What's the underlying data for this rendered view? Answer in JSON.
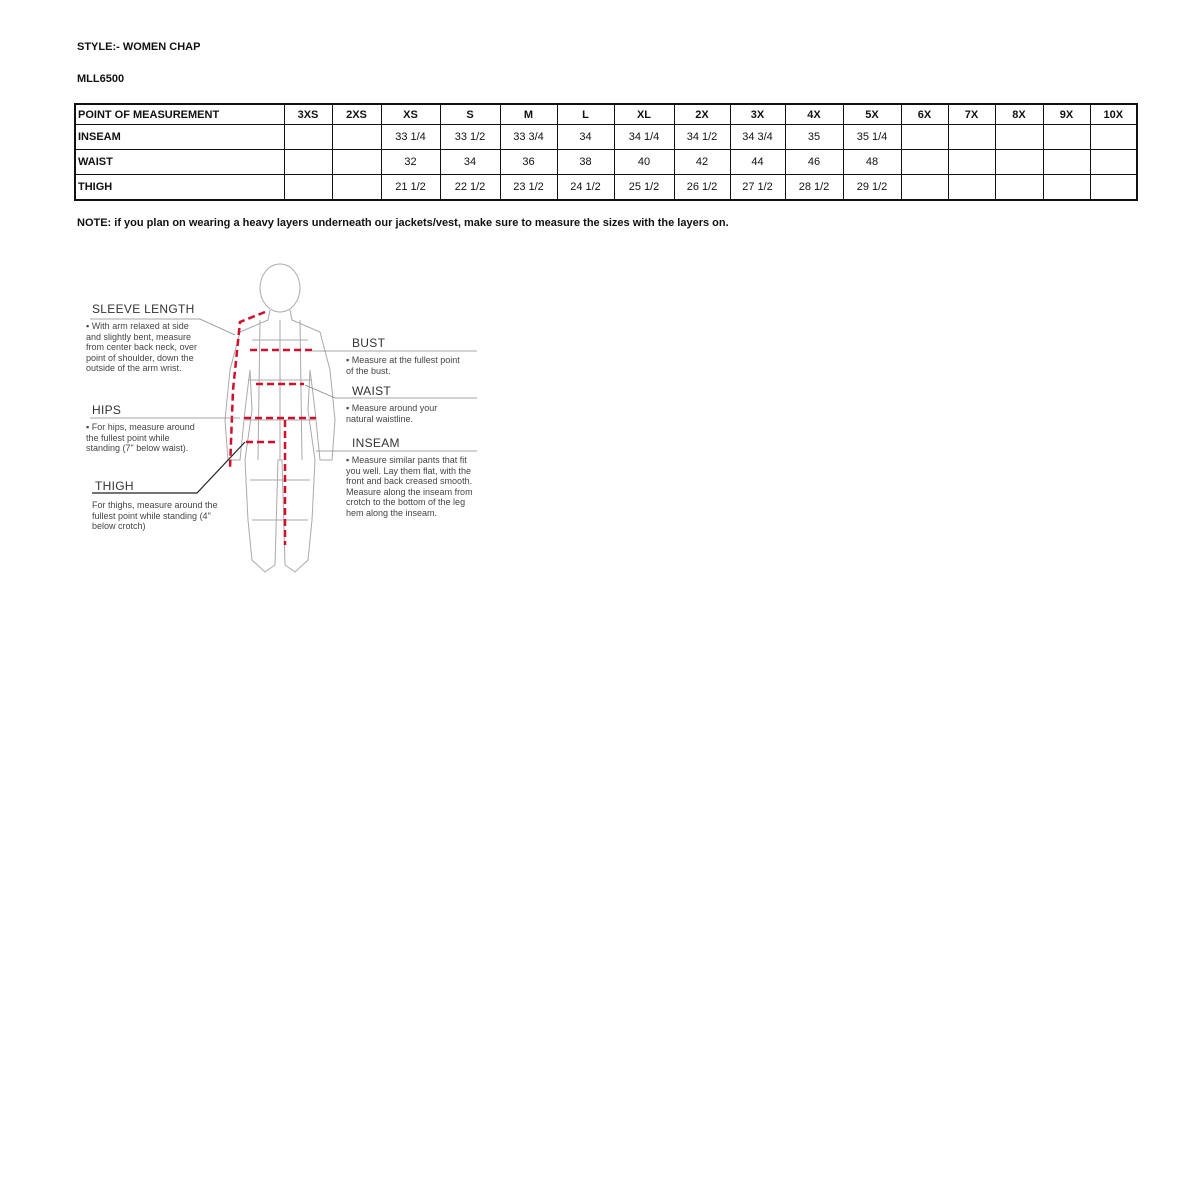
{
  "style_line": "STYLE:- WOMEN CHAP",
  "model": "MLL6500",
  "table": {
    "headers": [
      "POINT OF MEASUREMENT",
      "3XS",
      "2XS",
      "XS",
      "S",
      "M",
      "L",
      "XL",
      "2X",
      "3X",
      "4X",
      "5X",
      "6X",
      "7X",
      "8X",
      "9X",
      "10X"
    ],
    "rows": [
      {
        "label": "INSEAM",
        "values": [
          "",
          "",
          "33 1/4",
          "33 1/2",
          "33 3/4",
          "34",
          "34 1/4",
          "34 1/2",
          "34 3/4",
          "35",
          "35 1/4",
          "",
          "",
          "",
          "",
          ""
        ]
      },
      {
        "label": "WAIST",
        "values": [
          "",
          "",
          "32",
          "34",
          "36",
          "38",
          "40",
          "42",
          "44",
          "46",
          "48",
          "",
          "",
          "",
          "",
          ""
        ]
      },
      {
        "label": "THIGH",
        "values": [
          "",
          "",
          "21 1/2",
          "22 1/2",
          "23 1/2",
          "24 1/2",
          "25 1/2",
          "26 1/2",
          "27 1/2",
          "28 1/2",
          "29 1/2",
          "",
          "",
          "",
          "",
          ""
        ]
      }
    ]
  },
  "note": "NOTE: if you plan on wearing a heavy layers underneath our jackets/vest, make sure to measure the sizes with the layers on.",
  "figure": {
    "sleeve_title": "SLEEVE LENGTH",
    "sleeve_text": "▪ With arm relaxed at side and slightly bent, measure from center back neck, over point of shoulder, down the outside of the arm wrist.",
    "hips_title": "HIPS",
    "hips_text": "▪ For hips, measure around the fullest point while standing (7\" below waist).",
    "thigh_title": "THIGH",
    "thigh_text": "For thighs, measure around the fullest point while standing (4\" below crotch)",
    "bust_title": "BUST",
    "bust_text": "▪ Measure at the fullest point of the bust.",
    "waist_title": "WAIST",
    "waist_text": "▪ Measure around your natural waistline.",
    "inseam_title": "INSEAM",
    "inseam_text": "▪ Measure similar pants that fit you well. Lay them flat, with the front and back creased smooth. Measure along the inseam from crotch to the bottom of the leg hem along the inseam."
  },
  "colors": {
    "measure_line": "#d0102a"
  }
}
